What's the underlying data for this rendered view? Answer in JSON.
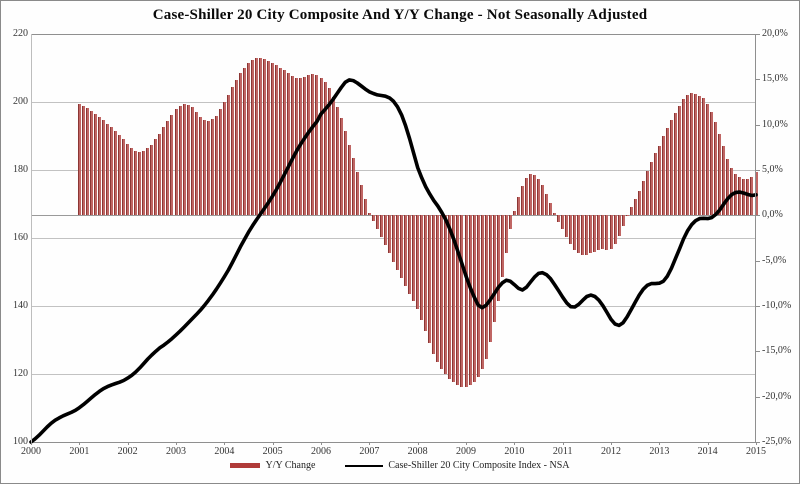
{
  "title": "Case-Shiller 20 City Composite And Y/Y Change - Not Seasonally Adjusted",
  "legend": {
    "bar_label": "Y/Y Change",
    "line_label": "Case-Shiller 20 City Composite Index - NSA"
  },
  "colors": {
    "bar_fill": "#c06664",
    "bar_edge": "#8c3634",
    "line": "#000000",
    "grid": "#c2c2c2",
    "axis": "#8f8f8f"
  },
  "chart_data": {
    "type": "combo",
    "frequency": "monthly",
    "title": "Case-Shiller 20 City Composite And Y/Y Change - Not Seasonally Adjusted",
    "grid": "horizontal",
    "legend_position": "bottom",
    "x_axis": {
      "tick_labels": [
        "2000",
        "2001",
        "2002",
        "2003",
        "2004",
        "2005",
        "2006",
        "2007",
        "2008",
        "2009",
        "2010",
        "2011",
        "2012",
        "2013",
        "2014",
        "2015"
      ],
      "range": [
        2000,
        2015.08
      ]
    },
    "left_axis": {
      "tick_labels": [
        "220",
        "200",
        "180",
        "160",
        "140",
        "120",
        "100"
      ],
      "tick_values": [
        220,
        200,
        180,
        160,
        140,
        120,
        100
      ],
      "min": 100,
      "max": 220
    },
    "right_axis": {
      "tick_labels": [
        "20,0%",
        "15,0%",
        "10,0%",
        "5,0%",
        "0,0%",
        "-5,0%",
        "-10,0%",
        "-15,0%",
        "-20,0%",
        "-25,0%"
      ],
      "tick_values": [
        20,
        15,
        10,
        5,
        0,
        -5,
        -10,
        -15,
        -20,
        -25
      ],
      "min": -25,
      "max": 20,
      "zero_baseline": true
    },
    "series": [
      {
        "name": "Y/Y Change",
        "type": "bar",
        "axis": "right",
        "unit": "percent",
        "start": "2001-01",
        "values": [
          12.3,
          12.1,
          11.8,
          11.5,
          11.2,
          10.9,
          10.5,
          10.1,
          9.7,
          9.3,
          8.9,
          8.4,
          7.9,
          7.4,
          7.1,
          7.0,
          7.1,
          7.4,
          7.8,
          8.4,
          9.0,
          9.7,
          10.4,
          11.1,
          11.7,
          12.1,
          12.3,
          12.2,
          11.9,
          11.4,
          10.9,
          10.5,
          10.4,
          10.6,
          11.0,
          11.7,
          12.5,
          13.3,
          14.1,
          14.9,
          15.7,
          16.3,
          16.8,
          17.1,
          17.3,
          17.3,
          17.2,
          17.0,
          16.8,
          16.6,
          16.3,
          16.0,
          15.7,
          15.4,
          15.2,
          15.2,
          15.3,
          15.5,
          15.6,
          15.5,
          15.2,
          14.7,
          14.0,
          13.1,
          12.0,
          10.7,
          9.3,
          7.8,
          6.3,
          4.8,
          3.3,
          1.8,
          0.3,
          -0.6,
          -1.5,
          -2.4,
          -3.3,
          -4.2,
          -5.1,
          -6.0,
          -6.9,
          -7.8,
          -8.7,
          -9.5,
          -10.3,
          -11.5,
          -12.8,
          -14.1,
          -15.3,
          -16.2,
          -16.9,
          -17.5,
          -18.0,
          -18.4,
          -18.7,
          -18.9,
          -18.9,
          -18.7,
          -18.4,
          -17.8,
          -17.0,
          -15.8,
          -14.0,
          -11.8,
          -9.4,
          -6.8,
          -4.1,
          -1.5,
          0.5,
          2.0,
          3.2,
          4.1,
          4.6,
          4.5,
          4.0,
          3.3,
          2.4,
          1.4,
          0.3,
          -0.7,
          -1.5,
          -2.4,
          -3.2,
          -3.8,
          -4.2,
          -4.4,
          -4.4,
          -4.2,
          -4.0,
          -3.8,
          -3.7,
          -3.8,
          -3.7,
          -3.2,
          -2.3,
          -1.2,
          -0.1,
          0.9,
          1.8,
          2.7,
          3.8,
          4.9,
          5.9,
          6.9,
          7.7,
          8.7,
          9.6,
          10.5,
          11.3,
          12.1,
          12.8,
          13.3,
          13.5,
          13.4,
          13.2,
          12.9,
          12.3,
          11.4,
          10.3,
          9.0,
          7.6,
          6.2,
          5.2,
          4.6,
          4.2,
          4.0,
          4.0,
          4.2,
          4.8
        ]
      },
      {
        "name": "Case-Shiller 20 City Composite Index - NSA",
        "type": "line",
        "axis": "left",
        "unit": "index",
        "start": "2000-01",
        "values": [
          100.0,
          100.9,
          102.0,
          103.2,
          104.4,
          105.5,
          106.4,
          107.1,
          107.7,
          108.2,
          108.7,
          109.3,
          110.1,
          111.0,
          112.0,
          113.0,
          114.0,
          114.9,
          115.7,
          116.3,
          116.8,
          117.2,
          117.6,
          118.1,
          118.8,
          119.6,
          120.6,
          121.8,
          123.1,
          124.4,
          125.6,
          126.7,
          127.7,
          128.5,
          129.4,
          130.4,
          131.5,
          132.6,
          133.8,
          135.0,
          136.2,
          137.4,
          138.7,
          140.1,
          141.6,
          143.2,
          144.9,
          146.7,
          148.6,
          150.6,
          152.8,
          155.1,
          157.4,
          159.6,
          161.7,
          163.6,
          165.4,
          167.1,
          168.8,
          170.5,
          172.4,
          174.4,
          176.6,
          178.9,
          181.2,
          183.5,
          185.7,
          187.7,
          189.5,
          191.2,
          192.8,
          194.3,
          196.5,
          197.8,
          199.2,
          200.8,
          202.5,
          204.2,
          205.8,
          206.5,
          206.3,
          205.6,
          204.7,
          203.8,
          203.0,
          202.5,
          202.1,
          201.9,
          201.7,
          201.2,
          200.2,
          198.6,
          196.2,
          193.0,
          189.2,
          185.0,
          180.7,
          177.7,
          175.1,
          172.9,
          171.0,
          169.4,
          167.5,
          165.3,
          162.6,
          159.5,
          156.0,
          152.4,
          148.8,
          145.6,
          142.7,
          140.3,
          139.5,
          140.2,
          141.8,
          143.6,
          145.4,
          146.8,
          147.6,
          147.3,
          146.3,
          145.2,
          144.7,
          145.5,
          147.0,
          148.5,
          149.6,
          149.8,
          149.2,
          148.0,
          146.3,
          144.5,
          142.6,
          140.9,
          139.8,
          139.7,
          140.5,
          141.7,
          142.8,
          143.2,
          142.8,
          141.7,
          140.1,
          138.1,
          136.1,
          134.7,
          134.3,
          135.1,
          136.8,
          138.9,
          141.1,
          143.2,
          144.9,
          146.1,
          146.6,
          146.6,
          146.7,
          147.3,
          148.8,
          151.1,
          153.9,
          156.8,
          159.7,
          162.1,
          163.9,
          165.1,
          165.7,
          165.8,
          165.7,
          166.0,
          166.9,
          168.3,
          170.0,
          171.6,
          172.8,
          173.4,
          173.5,
          173.2,
          172.8,
          172.5,
          172.7
        ]
      }
    ]
  }
}
